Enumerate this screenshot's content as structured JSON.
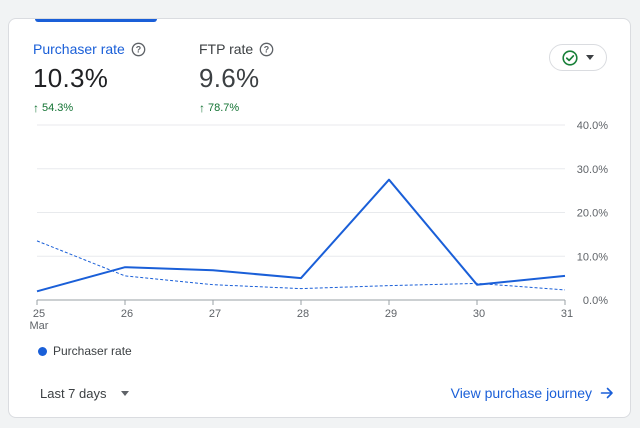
{
  "colors": {
    "accent": "#1a5fd8",
    "positive": "#137333",
    "ftp_line": "#1a5fd8",
    "grid": "#e8eaed",
    "check": "#188038"
  },
  "metrics": [
    {
      "label": "Purchaser rate",
      "value": "10.3%",
      "change": "54.3%",
      "active": true
    },
    {
      "label": "FTP rate",
      "value": "9.6%",
      "change": "78.7%",
      "active": false
    }
  ],
  "status_button": {
    "icon": "check-circle-icon",
    "caret_icon": "dropdown-caret-icon"
  },
  "chart_data": {
    "type": "line",
    "x": [
      "25",
      "26",
      "27",
      "28",
      "29",
      "30",
      "31"
    ],
    "x_sublabel_first": "Mar",
    "y_ticks": [
      "0.0%",
      "10.0%",
      "20.0%",
      "30.0%",
      "40.0%"
    ],
    "ylim": [
      0,
      40
    ],
    "series": [
      {
        "name": "Purchaser rate",
        "style": "solid",
        "values": [
          2.0,
          7.5,
          6.8,
          5.0,
          27.5,
          3.5,
          5.5
        ]
      },
      {
        "style": "dashed",
        "values": [
          13.5,
          5.5,
          3.5,
          2.6,
          3.3,
          3.8,
          2.3
        ]
      }
    ]
  },
  "legend": {
    "label": "Purchaser rate"
  },
  "footer": {
    "range_label": "Last 7 days",
    "link_label": "View purchase journey"
  }
}
